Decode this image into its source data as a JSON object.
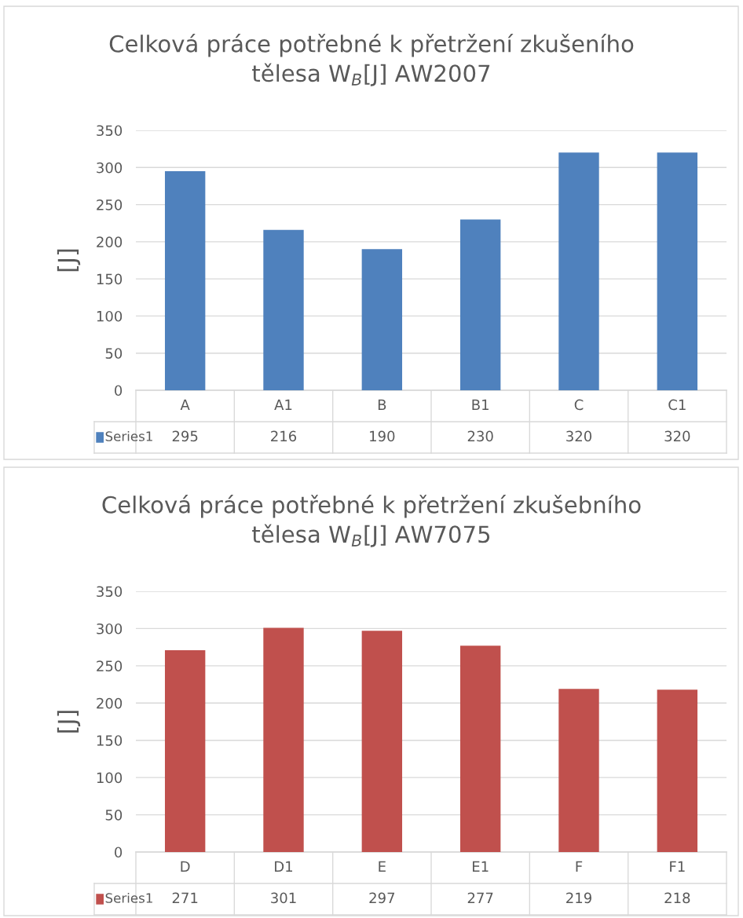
{
  "chart_data": [
    {
      "type": "bar",
      "title": "Celková práce potřebné k přetržení zkušeního\ntělesa W$_{B}$[J] AW2007",
      "ylabel": "[J]",
      "categories": [
        "A",
        "A1",
        "B",
        "B1",
        "C",
        "C1"
      ],
      "series": [
        {
          "name": "Series1",
          "color": "#4f81bd",
          "values": [
            295,
            216,
            190,
            230,
            320,
            320
          ]
        }
      ],
      "ylim": [
        0,
        350
      ],
      "yticks": [
        0,
        50,
        100,
        150,
        200,
        250,
        300,
        350
      ],
      "grid": "y",
      "legend": "bottom",
      "data_labels": true
    },
    {
      "type": "bar",
      "title": "Celková práce potřebné k přetržení zkušebního\ntělesa W$_{B}$[J] AW7075",
      "ylabel": "[J]",
      "categories": [
        "D",
        "D1",
        "E",
        "E1",
        "F",
        "F1"
      ],
      "series": [
        {
          "name": "Series1",
          "color": "#c0504d",
          "values": [
            271,
            301,
            297,
            277,
            219,
            218
          ]
        }
      ],
      "ylim": [
        0,
        350
      ],
      "yticks": [
        0,
        50,
        100,
        150,
        200,
        250,
        300,
        350
      ],
      "grid": "y",
      "legend": "bottom",
      "data_labels": true
    }
  ]
}
